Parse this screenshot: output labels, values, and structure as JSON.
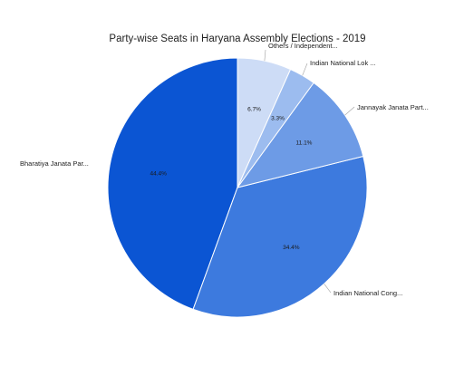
{
  "chart_data": {
    "type": "pie",
    "title": "Party-wise Seats in Haryana Assembly Elections - 2019",
    "slices": [
      {
        "label": "Bharatiya Janata Par...",
        "value": 44.4,
        "value_label": "44.4%",
        "color": "#0b55d3"
      },
      {
        "label": "Indian National Cong...",
        "value": 34.4,
        "value_label": "34.4%",
        "color": "#3d7ade"
      },
      {
        "label": "Jannayak Janata Part...",
        "value": 11.1,
        "value_label": "11.1%",
        "color": "#6d9be6"
      },
      {
        "label": "Indian National Lok ...",
        "value": 3.3,
        "value_label": "3.3%",
        "color": "#9cbcef"
      },
      {
        "label": "Others / Independent...",
        "value": 6.7,
        "value_label": "6.7%",
        "color": "#cddcf6"
      }
    ],
    "start": "top",
    "direction": "counterclockwise",
    "legend": "none"
  }
}
